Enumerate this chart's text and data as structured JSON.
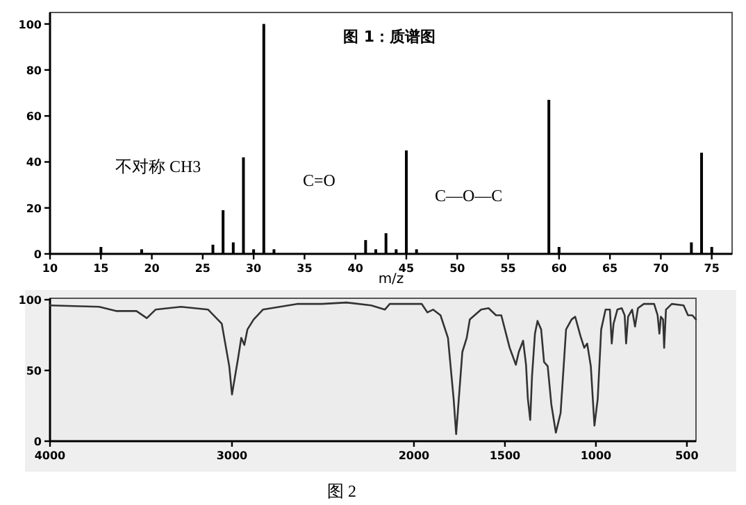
{
  "chart_data": [
    {
      "type": "bar",
      "title": "图 1：质谱图",
      "xlabel": "m/z",
      "color": "#000000",
      "x": [
        15,
        19,
        26,
        27,
        28,
        29,
        30,
        31,
        32,
        41,
        42,
        43,
        44,
        45,
        46,
        59,
        60,
        73,
        74,
        75
      ],
      "values": [
        3,
        2,
        4,
        19,
        5,
        42,
        2,
        100,
        2,
        6,
        2,
        9,
        2,
        45,
        2,
        67,
        3,
        5,
        44,
        3
      ],
      "xlim": [
        10,
        77
      ],
      "ylim": [
        0,
        105
      ],
      "xticks": [
        10,
        15,
        20,
        25,
        30,
        35,
        40,
        45,
        50,
        55,
        60,
        65,
        70,
        75
      ],
      "yticks": [
        0,
        20,
        40,
        60,
        80,
        100
      ],
      "annotations": [
        "不对称 CH3",
        "C=O",
        "C—O—C"
      ]
    },
    {
      "type": "line",
      "color": "#333333",
      "x": [
        4000,
        3730,
        3637,
        3525,
        3468,
        3420,
        3281,
        3131,
        3056,
        3015,
        3000,
        2966,
        2949,
        2932,
        2915,
        2881,
        2830,
        2643,
        2507,
        2371,
        2235,
        2160,
        2133,
        1957,
        1926,
        1895,
        1854,
        1813,
        1782,
        1768,
        1734,
        1710,
        1693,
        1631,
        1590,
        1549,
        1520,
        1474,
        1454,
        1440,
        1424,
        1400,
        1384,
        1374,
        1361,
        1351,
        1335,
        1321,
        1301,
        1285,
        1265,
        1245,
        1220,
        1194,
        1164,
        1134,
        1114,
        1084,
        1064,
        1048,
        1028,
        1008,
        990,
        971,
        947,
        923,
        913,
        903,
        882,
        858,
        842,
        834,
        823,
        801,
        785,
        769,
        737,
        680,
        661,
        651,
        643,
        631,
        625,
        615,
        583,
        518,
        494,
        470,
        450
      ],
      "values": [
        96,
        95,
        92,
        92,
        87,
        93,
        95,
        93,
        83,
        53,
        33,
        59,
        73,
        68,
        79,
        86,
        93,
        97,
        97,
        98,
        96,
        93,
        97,
        97,
        91,
        93,
        89,
        73,
        30,
        5,
        63,
        73,
        86,
        93,
        94,
        89,
        89,
        66,
        59,
        54,
        63,
        71,
        54,
        30,
        15,
        46,
        76,
        85,
        79,
        56,
        53,
        26,
        6,
        20,
        79,
        86,
        88,
        74,
        66,
        69,
        53,
        11,
        30,
        79,
        93,
        93,
        69,
        83,
        93,
        94,
        89,
        69,
        88,
        93,
        81,
        94,
        97,
        97,
        89,
        76,
        88,
        86,
        66,
        93,
        97,
        96,
        89,
        89,
        86
      ],
      "xlim": [
        4000,
        450
      ],
      "ylim": [
        0,
        101
      ],
      "xticks": [
        4000,
        3000,
        2000,
        1500,
        1000,
        500
      ],
      "yticks": [
        0,
        50,
        100
      ],
      "annotations": [
        "图 2"
      ]
    }
  ]
}
